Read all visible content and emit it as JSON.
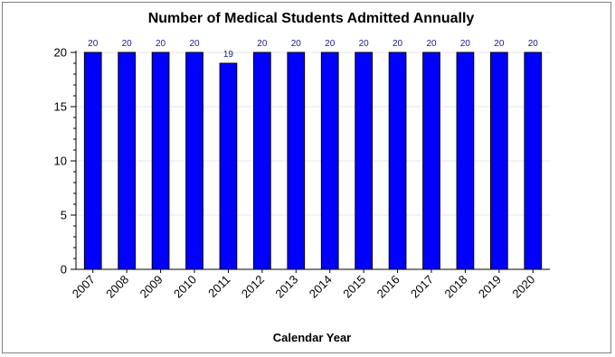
{
  "chart_data": {
    "type": "bar",
    "title": "Number of Medical Students Admitted Annually",
    "xlabel": "Calendar Year",
    "ylabel": "",
    "categories": [
      "2007",
      "2008",
      "2009",
      "2010",
      "2011",
      "2012",
      "2013",
      "2014",
      "2015",
      "2016",
      "2017",
      "2018",
      "2019",
      "2020"
    ],
    "values": [
      20,
      20,
      20,
      20,
      19,
      20,
      20,
      20,
      20,
      20,
      20,
      20,
      20,
      20
    ],
    "data_labels": [
      "20",
      "20",
      "20",
      "20",
      "19",
      "20",
      "20",
      "20",
      "20",
      "20",
      "20",
      "20",
      "20",
      "20"
    ],
    "ylim": [
      0,
      20
    ],
    "yticks": [
      "0",
      "5",
      "10",
      "15",
      "20"
    ],
    "grid": true,
    "bar_color": "#0000ff",
    "bar_edge_color": "#000000"
  }
}
